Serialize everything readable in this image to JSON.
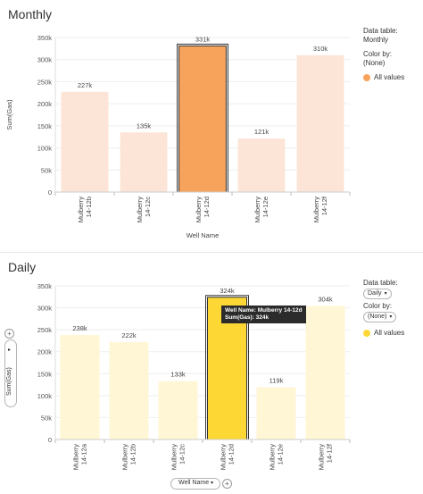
{
  "monthly": {
    "title": "Monthly",
    "ylabel": "Sum(Gas)",
    "xlabel": "Well Name",
    "legend": {
      "data_table_label": "Data table:",
      "data_table_value": "Monthly",
      "color_by_label": "Color by:",
      "color_by_value": "(None)",
      "item_label": "All values",
      "item_color": "#f7a35c"
    }
  },
  "daily": {
    "title": "Daily",
    "ylabel": "Sum(Gas)",
    "xlabel": "Well Name",
    "legend": {
      "data_table_label": "Data table:",
      "data_table_value": "Daily",
      "color_by_label": "Color by:",
      "color_by_value": "(None)",
      "item_label": "All values",
      "item_color": "#fdd835"
    },
    "tooltip": {
      "line1": "Well Name: Mulberry 14-12d",
      "line2": "Sum(Gas): 324k"
    },
    "add_button": "+"
  },
  "chart_data": [
    {
      "type": "bar",
      "title": "Monthly",
      "xlabel": "Well Name",
      "ylabel": "Sum(Gas)",
      "ylim": [
        0,
        350000
      ],
      "yticks": [
        "0",
        "50k",
        "100k",
        "150k",
        "200k",
        "250k",
        "300k",
        "350k"
      ],
      "categories": [
        "Mulberry 14-12b",
        "Mulberry 14-12c",
        "Mulberry 14-12d",
        "Mulberry 14-12e",
        "Mulberry 14-12f"
      ],
      "values": [
        227000,
        135000,
        331000,
        121000,
        310000
      ],
      "data_labels": [
        "227k",
        "135k",
        "331k",
        "121k",
        "310k"
      ],
      "selected": 2,
      "bar_color": "#fce4d6",
      "selected_color": "#f7a35c",
      "grid": true
    },
    {
      "type": "bar",
      "title": "Daily",
      "xlabel": "Well Name",
      "ylabel": "Sum(Gas)",
      "ylim": [
        0,
        350000
      ],
      "yticks": [
        "0",
        "50k",
        "100k",
        "150k",
        "200k",
        "250k",
        "300k",
        "350k"
      ],
      "categories": [
        "Mulberry 14-12a",
        "Mulberry 14-12b",
        "Mulberry 14-12c",
        "Mulberry 14-12d",
        "Mulberry 14-12e",
        "Mulberry 14-12f"
      ],
      "values": [
        238000,
        222000,
        133000,
        324000,
        119000,
        304000
      ],
      "data_labels": [
        "238k",
        "222k",
        "133k",
        "324k",
        "119k",
        "304k"
      ],
      "selected": 3,
      "bar_color": "#fff6d5",
      "selected_color": "#fdd835",
      "grid": true
    }
  ]
}
